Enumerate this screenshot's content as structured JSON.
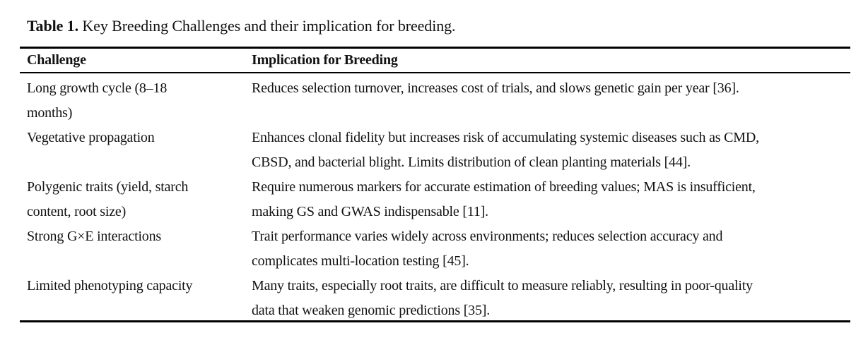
{
  "caption": {
    "label": "Table 1.",
    "text": " Key Breeding Challenges and their implication for breeding."
  },
  "table": {
    "headers": {
      "challenge": "Challenge",
      "implication": "Implication for Breeding"
    },
    "rows": [
      {
        "challenge": "Long growth cycle (8–18 months)",
        "challenge_lines": [
          "Long growth cycle (8–18",
          "months)"
        ],
        "implication": "Reduces selection turnover, increases cost of trials, and slows genetic gain per year [36].",
        "implication_lines": [
          "Reduces selection turnover, increases cost of trials, and slows genetic gain per year [36]."
        ]
      },
      {
        "challenge": "Vegetative propagation",
        "challenge_lines": [
          "Vegetative propagation"
        ],
        "implication": "Enhances clonal fidelity but increases risk of accumulating systemic diseases such as CMD, CBSD, and bacterial blight. Limits distribution of clean planting materials [44].",
        "implication_lines": [
          "Enhances clonal fidelity but increases risk of accumulating systemic diseases such as CMD,",
          "CBSD, and bacterial blight. Limits distribution of clean planting materials [44]."
        ]
      },
      {
        "challenge": "Polygenic traits (yield, starch content, root size)",
        "challenge_lines": [
          "Polygenic traits (yield, starch",
          "content, root size)"
        ],
        "implication": "Require numerous markers for accurate estimation of breeding values; MAS is insufficient, making GS and GWAS indispensable [11].",
        "implication_lines": [
          "Require numerous markers for accurate estimation of breeding values; MAS is insufficient,",
          "making GS and GWAS indispensable [11]."
        ]
      },
      {
        "challenge": "Strong G×E interactions",
        "challenge_lines": [
          "Strong G×E interactions"
        ],
        "implication": "Trait performance varies widely across environments; reduces selection accuracy and complicates multi-location testing [45].",
        "implication_lines": [
          "Trait performance varies widely across environments; reduces selection accuracy and",
          "complicates multi-location testing [45]."
        ]
      },
      {
        "challenge": "Limited phenotyping capacity",
        "challenge_lines": [
          "Limited phenotyping capacity"
        ],
        "implication": "Many traits, especially root traits, are difficult to measure reliably, resulting in poor-quality data that weaken genomic predictions [35].",
        "implication_lines": [
          "Many traits, especially root traits, are difficult to measure reliably, resulting in poor-quality",
          "data that weaken genomic predictions [35]."
        ]
      }
    ]
  },
  "colors": {
    "background": "#ffffff",
    "text": "#121212",
    "rule": "#000000"
  }
}
